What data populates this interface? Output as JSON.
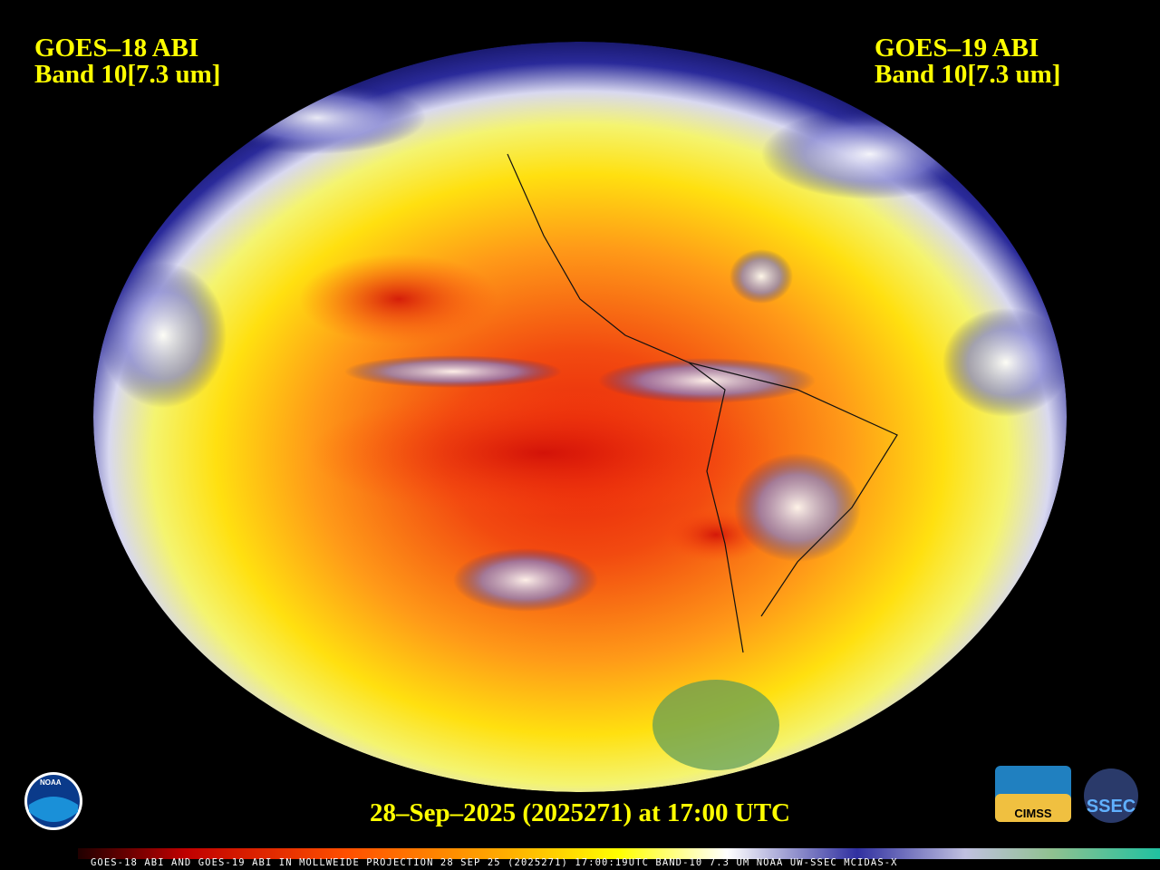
{
  "header": {
    "left": {
      "line1": "GOES–18 ABI",
      "line2": "Band 10[7.3 um]"
    },
    "right": {
      "line1": "GOES–19 ABI",
      "line2": "Band 10[7.3 um]"
    }
  },
  "timestamp": "28–Sep–2025 (2025271) at 17:00 UTC",
  "footer_bar": "GOES-18 ABI AND GOES-19 ABI IN MOLLWEIDE PROJECTION 28 SEP 25 (2025271) 17:00:19UTC BAND-10 7.3 UM NOAA UW-SSEC MCIDAS-X",
  "logos": {
    "noaa": "NOAA",
    "cimss": "CIMSS",
    "ssec": "SSEC"
  }
}
